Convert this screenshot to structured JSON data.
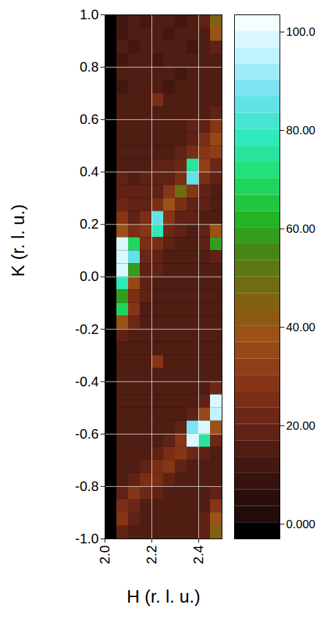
{
  "chart_data": {
    "type": "heatmap",
    "xlabel": "H (r. l. u.)",
    "ylabel": "K (r. l. u.)",
    "x": [
      2.075,
      2.125,
      2.175,
      2.225,
      2.275,
      2.325,
      2.375,
      2.425,
      2.475
    ],
    "y": [
      0.975,
      0.925,
      0.875,
      0.825,
      0.775,
      0.725,
      0.675,
      0.625,
      0.575,
      0.525,
      0.475,
      0.425,
      0.375,
      0.325,
      0.275,
      0.225,
      0.175,
      0.125,
      0.075,
      0.025,
      -0.025,
      -0.075,
      -0.125,
      -0.175,
      -0.225,
      -0.275,
      -0.325,
      -0.375,
      -0.425,
      -0.475,
      -0.525,
      -0.575,
      -0.625,
      -0.675,
      -0.725,
      -0.775,
      -0.825,
      -0.875,
      -0.925,
      -0.975
    ],
    "z": [
      [
        12,
        14,
        13,
        15,
        14,
        13,
        14,
        18,
        45
      ],
      [
        13,
        14,
        15,
        14,
        13,
        15,
        14,
        16,
        40
      ],
      [
        14,
        13,
        14,
        15,
        14,
        14,
        13,
        15,
        20
      ],
      [
        13,
        15,
        14,
        13,
        15,
        14,
        15,
        14,
        16
      ],
      [
        14,
        14,
        15,
        14,
        14,
        13,
        14,
        15,
        15
      ],
      [
        13,
        14,
        14,
        15,
        13,
        14,
        15,
        14,
        14
      ],
      [
        14,
        15,
        16,
        24,
        14,
        15,
        14,
        15,
        16
      ],
      [
        15,
        14,
        15,
        16,
        15,
        14,
        15,
        16,
        18
      ],
      [
        14,
        16,
        15,
        14,
        16,
        15,
        17,
        20,
        28
      ],
      [
        15,
        15,
        14,
        15,
        15,
        16,
        18,
        26,
        34
      ],
      [
        15,
        14,
        15,
        16,
        16,
        18,
        24,
        30,
        32
      ],
      [
        16,
        15,
        16,
        17,
        18,
        22,
        75,
        32,
        22
      ],
      [
        17,
        16,
        17,
        18,
        20,
        26,
        85,
        26,
        18
      ],
      [
        20,
        17,
        18,
        20,
        28,
        50,
        30,
        20,
        16
      ],
      [
        22,
        18,
        20,
        24,
        40,
        26,
        20,
        17,
        15
      ],
      [
        30,
        20,
        26,
        85,
        30,
        20,
        17,
        16,
        15
      ],
      [
        38,
        24,
        30,
        80,
        22,
        18,
        16,
        18,
        40
      ],
      [
        100,
        70,
        26,
        26,
        18,
        16,
        16,
        17,
        60
      ],
      [
        100,
        85,
        22,
        18,
        16,
        15,
        15,
        16,
        20
      ],
      [
        100,
        60,
        20,
        17,
        16,
        15,
        15,
        15,
        16
      ],
      [
        80,
        35,
        18,
        16,
        15,
        14,
        15,
        14,
        15
      ],
      [
        60,
        26,
        17,
        15,
        14,
        15,
        14,
        15,
        14
      ],
      [
        70,
        30,
        16,
        15,
        15,
        14,
        15,
        14,
        15
      ],
      [
        40,
        22,
        15,
        14,
        15,
        15,
        14,
        15,
        14
      ],
      [
        18,
        16,
        15,
        15,
        14,
        15,
        14,
        14,
        15
      ],
      [
        16,
        15,
        14,
        16,
        15,
        14,
        15,
        15,
        14
      ],
      [
        15,
        14,
        15,
        28,
        15,
        15,
        14,
        15,
        14
      ],
      [
        14,
        15,
        14,
        15,
        14,
        15,
        15,
        14,
        15
      ],
      [
        15,
        14,
        15,
        14,
        15,
        14,
        15,
        16,
        22
      ],
      [
        14,
        15,
        14,
        15,
        14,
        15,
        16,
        20,
        100
      ],
      [
        15,
        14,
        15,
        14,
        15,
        16,
        20,
        35,
        95
      ],
      [
        14,
        15,
        14,
        15,
        16,
        20,
        90,
        100,
        40
      ],
      [
        15,
        14,
        15,
        16,
        18,
        30,
        100,
        75,
        22
      ],
      [
        14,
        15,
        16,
        18,
        26,
        28,
        22,
        18,
        16
      ],
      [
        15,
        16,
        18,
        24,
        30,
        18,
        16,
        15,
        14
      ],
      [
        16,
        20,
        26,
        24,
        18,
        16,
        15,
        14,
        16
      ],
      [
        18,
        28,
        22,
        17,
        15,
        14,
        15,
        14,
        18
      ],
      [
        24,
        22,
        16,
        15,
        14,
        15,
        14,
        16,
        28
      ],
      [
        30,
        18,
        15,
        14,
        15,
        14,
        15,
        18,
        40
      ],
      [
        20,
        15,
        14,
        15,
        14,
        15,
        14,
        20,
        45
      ]
    ],
    "xlim": [
      2.0,
      2.5
    ],
    "ylim": [
      -1.0,
      1.0
    ],
    "xticks": [
      {
        "value": 2.0,
        "label": "2.0"
      },
      2.2,
      2.4
    ],
    "yticks": [
      {
        "value": -1.0,
        "label": "-1.0"
      },
      -0.8,
      -0.6,
      -0.4,
      -0.2,
      {
        "value": 0.0,
        "label": "0.0"
      },
      0.2,
      0.4,
      0.6,
      0.8,
      {
        "value": 1.0,
        "label": "1.0"
      }
    ],
    "grid": true,
    "colorbar": {
      "range": [
        -3,
        103.5
      ],
      "ticks": [
        {
          "value": 0,
          "label": "0.000"
        },
        {
          "value": 20,
          "label": "20.00"
        },
        {
          "value": 40,
          "label": "40.00"
        },
        {
          "value": 60,
          "label": "60.00"
        },
        {
          "value": 80,
          "label": "80.00"
        },
        {
          "value": 100,
          "label": "100.0"
        }
      ]
    }
  }
}
